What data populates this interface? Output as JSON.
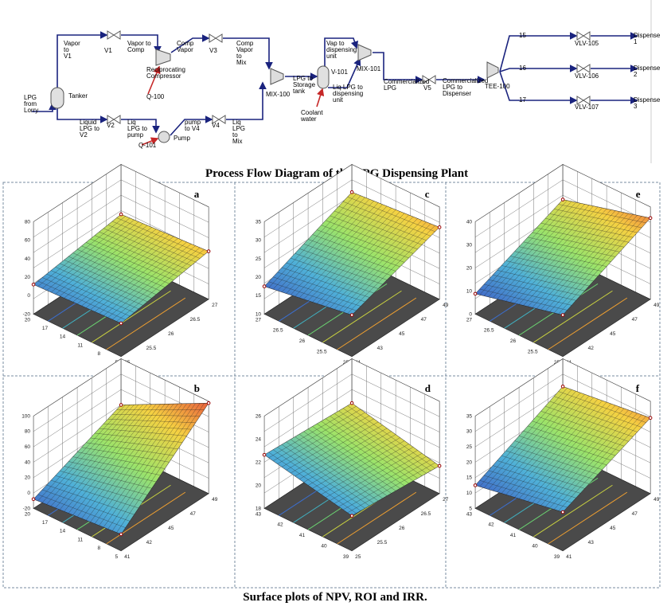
{
  "pfd": {
    "labels": [
      {
        "lines": [
          "LPG",
          "from",
          "Lorry"
        ]
      },
      {
        "lines": [
          "Tanker"
        ]
      },
      {
        "lines": [
          "Vapor",
          "to",
          "V1"
        ]
      },
      {
        "lines": [
          "V1"
        ]
      },
      {
        "lines": [
          "Vapor to",
          "Comp"
        ]
      },
      {
        "lines": [
          "Comp",
          "Vapor"
        ]
      },
      {
        "lines": [
          "V3"
        ]
      },
      {
        "lines": [
          "Comp",
          "Vapor",
          "to",
          "Mix"
        ]
      },
      {
        "lines": [
          "Reciprocating",
          "Compressor"
        ]
      },
      {
        "lines": [
          "Q-100"
        ]
      },
      {
        "lines": [
          "Liquid",
          "LPG to",
          "V2"
        ]
      },
      {
        "lines": [
          "V2"
        ]
      },
      {
        "lines": [
          "Liq",
          "LPG to",
          "pump"
        ]
      },
      {
        "lines": [
          "Q-101"
        ]
      },
      {
        "lines": [
          "Pump"
        ]
      },
      {
        "lines": [
          "pump",
          "to V4"
        ]
      },
      {
        "lines": [
          "V4"
        ]
      },
      {
        "lines": [
          "Liq",
          "LPG",
          "to",
          "Mix"
        ]
      },
      {
        "lines": [
          "MIX-100"
        ]
      },
      {
        "lines": [
          "LPG to",
          "Storage",
          "tank"
        ]
      },
      {
        "lines": [
          "V-101"
        ]
      },
      {
        "lines": [
          "Vap to",
          "dispensing",
          "unit"
        ]
      },
      {
        "lines": [
          "Liq LPG to",
          "dispensing",
          "unit"
        ]
      },
      {
        "lines": [
          "Coolant",
          "water"
        ]
      },
      {
        "lines": [
          "MIX-101"
        ]
      },
      {
        "lines": [
          "Commercialized",
          "LPG"
        ]
      },
      {
        "lines": [
          "V5"
        ]
      },
      {
        "lines": [
          "Commercialized",
          "LPG to",
          "Dispenser"
        ]
      },
      {
        "lines": [
          "TEE-100"
        ]
      },
      {
        "lines": [
          "15"
        ]
      },
      {
        "lines": [
          "VLV-105"
        ]
      },
      {
        "lines": [
          "Dispense",
          "1"
        ]
      },
      {
        "lines": [
          "16"
        ]
      },
      {
        "lines": [
          "VLV-106"
        ]
      },
      {
        "lines": [
          "Dispense",
          "2"
        ]
      },
      {
        "lines": [
          "17"
        ]
      },
      {
        "lines": [
          "VLV-107"
        ]
      },
      {
        "lines": [
          "Dispense",
          "3"
        ]
      }
    ],
    "caption": "Process Flow Diagram of the LPG Dispensing Plant"
  },
  "plots": [
    {
      "label": "a",
      "zticks": [
        80,
        60,
        40,
        20,
        0,
        -20
      ],
      "xticks": [
        20,
        17,
        14,
        11,
        8,
        5
      ],
      "yticks": [
        25,
        25.5,
        26,
        26.5,
        27
      ]
    },
    {
      "label": "c",
      "zticks": [
        35,
        30,
        25,
        20,
        15,
        10
      ],
      "xticks": [
        27,
        26.5,
        26,
        25.5,
        25
      ],
      "yticks": [
        41,
        43,
        45,
        47,
        49
      ]
    },
    {
      "label": "e",
      "zticks": [
        40,
        30,
        20,
        10,
        0
      ],
      "xticks": [
        27,
        26.5,
        26,
        25.5,
        25
      ],
      "yticks": [
        41,
        42,
        45,
        47,
        49
      ]
    },
    {
      "label": "b",
      "zticks": [
        100,
        80,
        60,
        40,
        20,
        0,
        -20
      ],
      "xticks": [
        20,
        17,
        14,
        11,
        8,
        5
      ],
      "yticks": [
        41,
        42,
        45,
        47,
        49
      ]
    },
    {
      "label": "d",
      "zticks": [
        26,
        24,
        22,
        20,
        18
      ],
      "xticks": [
        43,
        42,
        41,
        40,
        39
      ],
      "yticks": [
        25,
        25.5,
        26,
        26.5,
        27
      ]
    },
    {
      "label": "f",
      "zticks": [
        35,
        30,
        25,
        20,
        15,
        10,
        5
      ],
      "xticks": [
        43,
        42,
        41,
        40,
        39
      ],
      "yticks": [
        41,
        43,
        45,
        47,
        49
      ]
    }
  ],
  "caption": "Surface plots of NPV, ROI and IRR."
}
